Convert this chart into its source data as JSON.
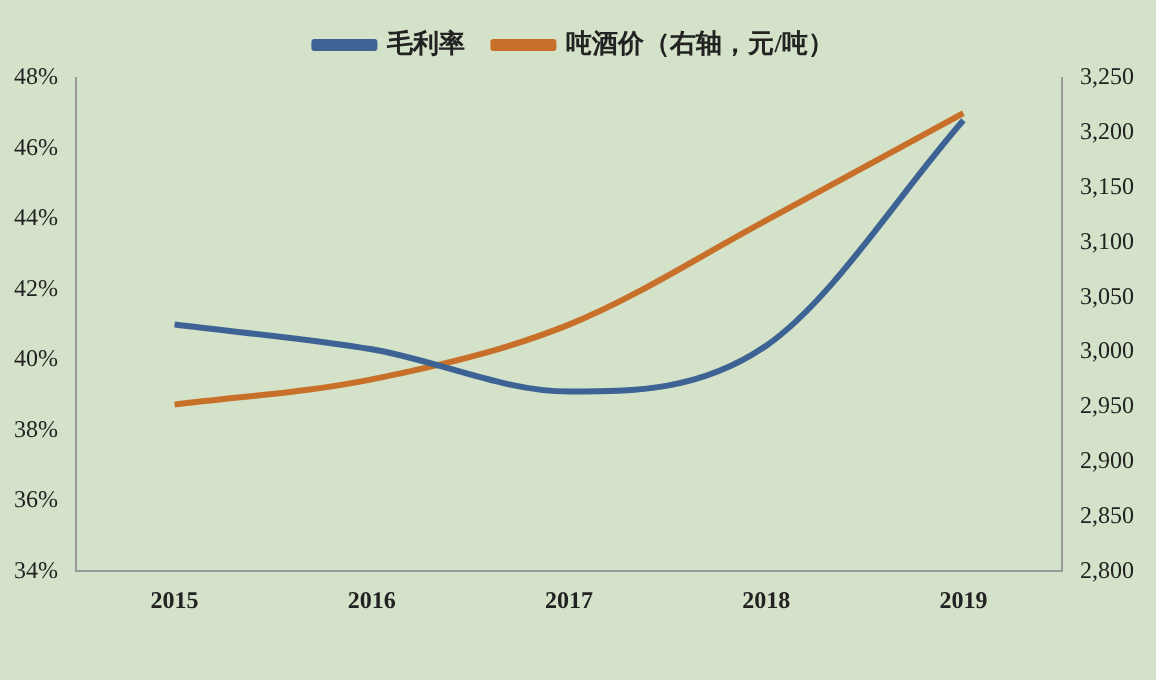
{
  "chart_data": {
    "type": "line",
    "categories": [
      "2015",
      "2016",
      "2017",
      "2018",
      "2019"
    ],
    "series": [
      {
        "name": "毛利率",
        "color": "#3d6294",
        "values": [
          41.0,
          40.3,
          39.1,
          40.4,
          46.8
        ]
      },
      {
        "name": "吨酒价（右轴，元/吨）",
        "color": "#c8702a",
        "values": [
          2952,
          2975,
          3025,
          3120,
          3218
        ],
        "axis": "y2"
      }
    ],
    "ylim": [
      34,
      48
    ],
    "yticks": [
      {
        "value": 34,
        "label": "34%"
      },
      {
        "value": 36,
        "label": "36%"
      },
      {
        "value": 38,
        "label": "38%"
      },
      {
        "value": 40,
        "label": "40%"
      },
      {
        "value": 42,
        "label": "42%"
      },
      {
        "value": 44,
        "label": "44%"
      },
      {
        "value": 46,
        "label": "46%"
      },
      {
        "value": 48,
        "label": "48%"
      }
    ],
    "y2lim": [
      2800,
      3250
    ],
    "y2ticks": [
      {
        "value": 2800,
        "label": "2,800"
      },
      {
        "value": 2850,
        "label": "2,850"
      },
      {
        "value": 2900,
        "label": "2,900"
      },
      {
        "value": 2950,
        "label": "2,950"
      },
      {
        "value": 3000,
        "label": "3,000"
      },
      {
        "value": 3050,
        "label": "3,050"
      },
      {
        "value": 3100,
        "label": "3,100"
      },
      {
        "value": 3150,
        "label": "3,150"
      },
      {
        "value": 3200,
        "label": "3,200"
      },
      {
        "value": 3250,
        "label": "3,250"
      }
    ],
    "grid": false,
    "legend": "top",
    "marker": "none",
    "line_style": "solid"
  }
}
